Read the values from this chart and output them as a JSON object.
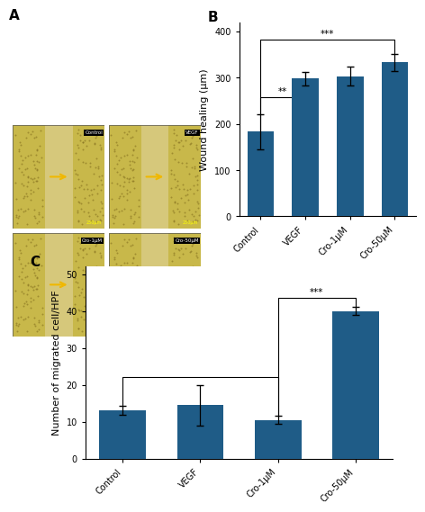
{
  "panel_B": {
    "categories": [
      "Control",
      "VEGF",
      "Cro-1μM",
      "Cro-50μM"
    ],
    "values": [
      183,
      298,
      303,
      333
    ],
    "errors": [
      38,
      15,
      20,
      18
    ],
    "ylabel": "Wound healing (μm)",
    "ylim": [
      0,
      420
    ],
    "yticks": [
      0,
      100,
      200,
      300,
      400
    ],
    "label": "B"
  },
  "panel_C": {
    "categories": [
      "Control",
      "VEGF",
      "Cro-1μM",
      "Cro-50μM"
    ],
    "values": [
      13,
      14.5,
      10.5,
      40
    ],
    "errors": [
      1.2,
      5.5,
      1.0,
      1.2
    ],
    "ylabel": "Number of migrated cell/HPF",
    "ylim": [
      0,
      52
    ],
    "yticks": [
      0,
      10,
      20,
      30,
      40,
      50
    ],
    "label": "C"
  },
  "bar_color": "#1f5c87",
  "bg_color": "#c8b44a",
  "scratch_color": "#e8d878",
  "cell_color": "#a09040",
  "error_color": "black",
  "tick_fontsize": 7,
  "label_fontsize": 8,
  "panel_label_fontsize": 11
}
